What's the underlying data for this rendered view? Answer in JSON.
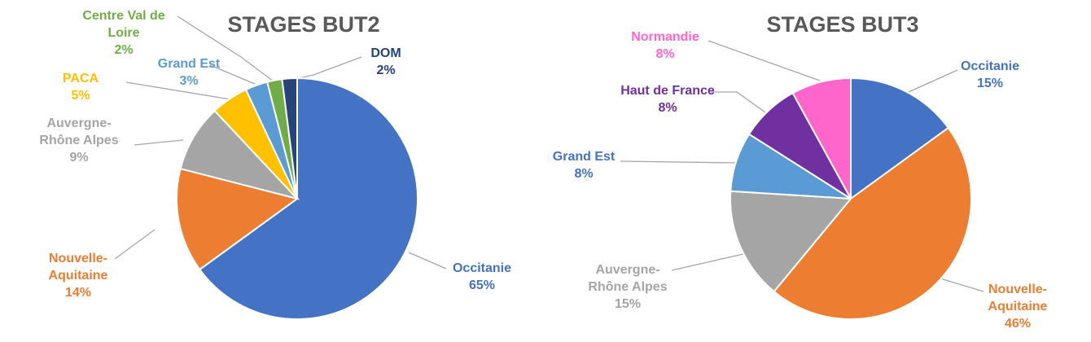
{
  "chart_data": [
    {
      "type": "pie",
      "title": "STAGES BUT2",
      "slices": [
        {
          "label": [
            "Occitanie"
          ],
          "value": 65,
          "value_label": "65%",
          "color": "#4472c4",
          "label_color": "#4472c4"
        },
        {
          "label": [
            "Nouvelle-",
            "Aquitaine"
          ],
          "value": 14,
          "value_label": "14%",
          "color": "#ed7d31",
          "label_color": "#ed7d31"
        },
        {
          "label": [
            "Auvergne-",
            "Rhône Alpes"
          ],
          "value": 9,
          "value_label": "9%",
          "color": "#a5a5a5",
          "label_color": "#a5a5a5"
        },
        {
          "label": [
            "PACA"
          ],
          "value": 5,
          "value_label": "5%",
          "color": "#ffc000",
          "label_color": "#ffc000"
        },
        {
          "label": [
            "Grand Est"
          ],
          "value": 3,
          "value_label": "3%",
          "color": "#5b9bd5",
          "label_color": "#5b9bd5"
        },
        {
          "label": [
            "Centre Val de",
            "Loire"
          ],
          "value": 2,
          "value_label": "2%",
          "color": "#70ad47",
          "label_color": "#70ad47"
        },
        {
          "label": [
            "DOM"
          ],
          "value": 2,
          "value_label": "2%",
          "color": "#264478",
          "label_color": "#264478"
        }
      ]
    },
    {
      "type": "pie",
      "title": "STAGES BUT3",
      "slices": [
        {
          "label": [
            "Occitanie"
          ],
          "value": 15,
          "value_label": "15%",
          "color": "#4472c4",
          "label_color": "#4472c4"
        },
        {
          "label": [
            "Nouvelle-",
            "Aquitaine"
          ],
          "value": 46,
          "value_label": "46%",
          "color": "#ed7d31",
          "label_color": "#ed7d31"
        },
        {
          "label": [
            "Auvergne-",
            "Rhône Alpes"
          ],
          "value": 15,
          "value_label": "15%",
          "color": "#a5a5a5",
          "label_color": "#a5a5a5"
        },
        {
          "label": [
            "Grand Est"
          ],
          "value": 8,
          "value_label": "8%",
          "color": "#5b9bd5",
          "label_color": "#4472c4"
        },
        {
          "label": [
            "Haut de France"
          ],
          "value": 8,
          "value_label": "8%",
          "color": "#7030a0",
          "label_color": "#7030a0"
        },
        {
          "label": [
            "Normandie"
          ],
          "value": 8,
          "value_label": "8%",
          "color": "#ff66cc",
          "label_color": "#ff66cc"
        }
      ]
    }
  ]
}
